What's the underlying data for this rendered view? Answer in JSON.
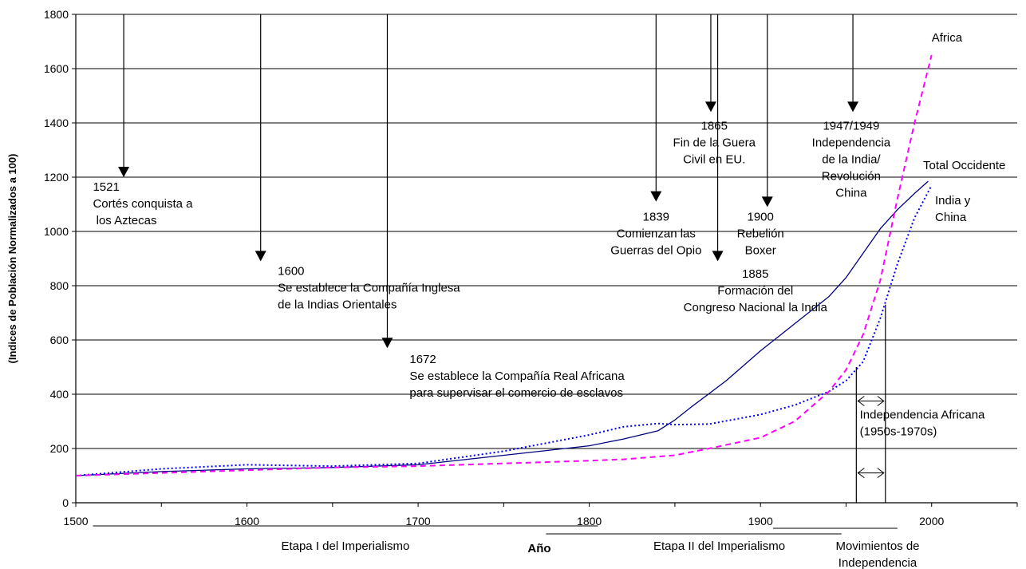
{
  "chart_data": {
    "type": "line",
    "xlabel": "Año",
    "ylabel": "(Indices de Población Normalizados a 100)",
    "xlim": [
      1500,
      2050
    ],
    "ylim": [
      0,
      1800
    ],
    "x_ticks": [
      1500,
      1600,
      1700,
      1800,
      1900,
      2000
    ],
    "y_ticks": [
      0,
      200,
      400,
      600,
      800,
      1000,
      1200,
      1400,
      1600,
      1800
    ],
    "grid": "horizontal",
    "series": [
      {
        "name": "Total Occidente",
        "color": "#000080",
        "style": "solid",
        "x": [
          1500,
          1550,
          1600,
          1650,
          1700,
          1750,
          1800,
          1820,
          1840,
          1850,
          1860,
          1880,
          1900,
          1920,
          1940,
          1950,
          1960,
          1970,
          1980,
          1990,
          1998
        ],
        "y": [
          100,
          115,
          125,
          130,
          140,
          175,
          210,
          235,
          265,
          305,
          355,
          450,
          560,
          660,
          760,
          830,
          920,
          1010,
          1080,
          1140,
          1185
        ]
      },
      {
        "name": "India y China",
        "color": "#0000ff",
        "style": "dotted",
        "x": [
          1500,
          1550,
          1600,
          1650,
          1700,
          1750,
          1800,
          1820,
          1840,
          1850,
          1870,
          1900,
          1920,
          1940,
          1950,
          1960,
          1970,
          1980,
          1990,
          2000
        ],
        "y": [
          100,
          125,
          140,
          135,
          145,
          190,
          250,
          280,
          292,
          288,
          290,
          325,
          360,
          410,
          450,
          520,
          680,
          880,
          1050,
          1170
        ]
      },
      {
        "name": "Africa",
        "color": "#ff00ff",
        "style": "dashed",
        "x": [
          1500,
          1550,
          1600,
          1650,
          1700,
          1750,
          1800,
          1820,
          1850,
          1870,
          1900,
          1920,
          1940,
          1950,
          1960,
          1970,
          1980,
          1990,
          2000
        ],
        "y": [
          100,
          110,
          120,
          130,
          135,
          145,
          155,
          160,
          175,
          200,
          240,
          300,
          410,
          490,
          620,
          820,
          1120,
          1400,
          1650
        ]
      }
    ],
    "series_labels": [
      {
        "lines": [
          "Africa"
        ],
        "x": 2000,
        "y": 1700,
        "anchor": "start"
      },
      {
        "lines": [
          "Total Occidente"
        ],
        "x": 1995,
        "y": 1230,
        "anchor": "start"
      },
      {
        "lines": [
          "India y",
          "China"
        ],
        "x": 2002,
        "y": 1100,
        "anchor": "start"
      }
    ],
    "events": [
      {
        "label_lines": [
          "1521",
          "Cortés conquista a",
          " los Aztecas"
        ],
        "x": 1528,
        "y_top": 1800,
        "y_arrow": 1200,
        "label_x": 1510,
        "label_y": 1150,
        "anchor": "start"
      },
      {
        "label_lines": [
          "1600",
          "Se establece la Compañía Inglesa",
          "de la Indias Orientales"
        ],
        "x": 1608,
        "y_top": 1800,
        "y_arrow": 890,
        "label_x": 1618,
        "label_y": 840,
        "anchor": "start"
      },
      {
        "label_lines": [
          "1672",
          "Se establece la Compañía Real Africana",
          "para supervisar el comercio de esclavos"
        ],
        "x": 1682,
        "y_top": 1800,
        "y_arrow": 570,
        "label_x": 1695,
        "label_y": 515,
        "anchor": "start"
      },
      {
        "label_lines": [
          "1839",
          "Comienzan las",
          "Guerras del Opio"
        ],
        "x": 1839,
        "y_top": 1800,
        "y_arrow": 1110,
        "label_x": 1839,
        "label_y": 1040,
        "anchor": "middle"
      },
      {
        "label_lines": [
          "1865",
          "Fin de la Guera",
          "Civil en EU."
        ],
        "x": 1871,
        "y_top": 1800,
        "y_arrow": 1440,
        "label_x": 1873,
        "label_y": 1375,
        "anchor": "middle"
      },
      {
        "label_lines": [
          "1885",
          "Formación del",
          "Congreso Nacional la India"
        ],
        "x": 1875,
        "y_top": 1800,
        "y_arrow": 890,
        "label_x": 1897,
        "label_y": 830,
        "anchor": "middle"
      },
      {
        "label_lines": [
          "1900",
          "Rebelión",
          "Boxer"
        ],
        "x": 1904,
        "y_top": 1800,
        "y_arrow": 1090,
        "label_x": 1900,
        "label_y": 1040,
        "anchor": "middle"
      },
      {
        "label_lines": [
          "1947/1949",
          "Independencia",
          "de la India/",
          "Revolución",
          "China"
        ],
        "x": 1954,
        "y_top": 1800,
        "y_arrow": 1440,
        "label_x": 1953,
        "label_y": 1375,
        "anchor": "middle"
      }
    ],
    "independence_band": {
      "x_start": 1956,
      "x_end": 1973,
      "label_lines": [
        "Independencia Africana",
        "(1950s-1970s)"
      ],
      "label_x": 1958,
      "label_y": 310
    },
    "periods": [
      {
        "label": "Etapa I del Imperialismo",
        "x_start": 1510,
        "x_end": 1805
      },
      {
        "label": "Etapa II del Imperialismo",
        "x_start": 1805,
        "x_end": 1945
      },
      {
        "label": "Movimientos de Independencia",
        "label_lines": [
          "Movimientos de",
          "Independencia"
        ],
        "x_start": 1905,
        "x_end": 1980
      }
    ]
  }
}
